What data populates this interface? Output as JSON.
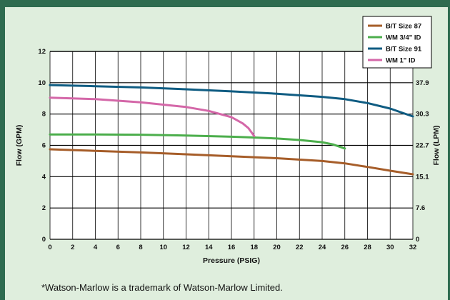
{
  "colors": {
    "frame": "#2e6b4f",
    "panel": "#dfeedd",
    "brown": "#a65d29",
    "green": "#4cae4c",
    "blue": "#0f5c82",
    "pink": "#d467a8"
  },
  "footnote": "*Watson-Marlow is a trademark of Watson-Marlow Limited.",
  "chart_data": {
    "type": "line",
    "title": "",
    "xlabel": "Pressure (PSIG)",
    "ylabel": "Flow (GPM)",
    "y2label": "Flow (LPM)",
    "xlim": [
      0,
      32
    ],
    "ylim": [
      0,
      12
    ],
    "x_ticks": [
      "0",
      "2",
      "4",
      "6",
      "8",
      "10",
      "12",
      "14",
      "16",
      "18",
      "20",
      "22",
      "24",
      "26",
      "28",
      "30",
      "32"
    ],
    "y_ticks": [
      "0",
      "2",
      "4",
      "6",
      "8",
      "10",
      "12"
    ],
    "y2_ticks": [
      {
        "label": "0",
        "gpm": 0
      },
      {
        "label": "7.6",
        "gpm": 2
      },
      {
        "label": "15.1",
        "gpm": 4
      },
      {
        "label": "22.7",
        "gpm": 6
      },
      {
        "label": "30.3",
        "gpm": 8
      },
      {
        "label": "37.9",
        "gpm": 10
      }
    ],
    "grid": true,
    "legend_position": "top-right",
    "series": [
      {
        "name": "B/T Size 87",
        "color": "#a65d29",
        "x": [
          0,
          4,
          8,
          12,
          16,
          20,
          24,
          26,
          28,
          30,
          32
        ],
        "y": [
          5.75,
          5.65,
          5.55,
          5.43,
          5.3,
          5.18,
          5.0,
          4.85,
          4.62,
          4.38,
          4.15
        ]
      },
      {
        "name": "WM 3/4\" ID",
        "color": "#4cae4c",
        "x": [
          0,
          4,
          8,
          12,
          16,
          18,
          20,
          22,
          24,
          25,
          26
        ],
        "y": [
          6.7,
          6.7,
          6.68,
          6.63,
          6.55,
          6.5,
          6.44,
          6.34,
          6.2,
          6.05,
          5.8
        ]
      },
      {
        "name": "B/T Size 91",
        "color": "#0f5c82",
        "x": [
          0,
          4,
          8,
          12,
          16,
          20,
          24,
          26,
          28,
          30,
          31,
          32
        ],
        "y": [
          9.85,
          9.78,
          9.7,
          9.58,
          9.45,
          9.3,
          9.1,
          8.95,
          8.7,
          8.35,
          8.1,
          7.85
        ]
      },
      {
        "name": "WM 1\" ID",
        "color": "#d467a8",
        "x": [
          0,
          4,
          8,
          12,
          14,
          16,
          17,
          17.5,
          18
        ],
        "y": [
          9.05,
          8.95,
          8.75,
          8.45,
          8.2,
          7.8,
          7.4,
          7.1,
          6.6
        ]
      }
    ]
  }
}
